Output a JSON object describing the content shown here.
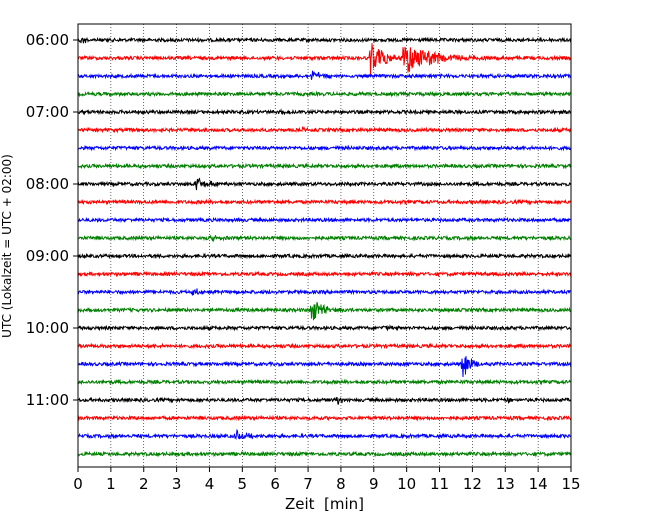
{
  "chart_data": {
    "type": "line",
    "title": "",
    "xlabel": "Zeit  [min]",
    "ylabel": "UTC (Lokalzeit = UTC + 02:00)",
    "xlim": [
      0,
      15
    ],
    "x_ticks": [
      "0",
      "1",
      "2",
      "3",
      "4",
      "5",
      "6",
      "7",
      "8",
      "9",
      "10",
      "11",
      "12",
      "13",
      "14",
      "15"
    ],
    "y_ticks": [
      "06:00",
      "07:00",
      "08:00",
      "09:00",
      "10:00",
      "11:00"
    ],
    "grid": {
      "x": "dotted",
      "y": "off"
    },
    "trace_count": 24,
    "trace_interval_min": 15,
    "color_cycle": [
      "#000000",
      "#ff0000",
      "#0000ff",
      "#008000"
    ],
    "events": [
      {
        "trace": 0,
        "x": 0.1,
        "amp": 0.25,
        "dur": 0.4
      },
      {
        "trace": 1,
        "x": 8.9,
        "amp": 1.0,
        "dur": 0.9
      },
      {
        "trace": 1,
        "x": 9.9,
        "amp": 0.95,
        "dur": 1.8
      },
      {
        "trace": 2,
        "x": 7.1,
        "amp": 0.28,
        "dur": 0.9
      },
      {
        "trace": 4,
        "x": 6.2,
        "amp": 0.15,
        "dur": 0.3
      },
      {
        "trace": 5,
        "x": 6.8,
        "amp": 0.22,
        "dur": 0.2
      },
      {
        "trace": 8,
        "x": 3.6,
        "amp": 0.4,
        "dur": 0.7
      },
      {
        "trace": 11,
        "x": 4.0,
        "amp": 0.2,
        "dur": 0.5
      },
      {
        "trace": 14,
        "x": 3.5,
        "amp": 0.22,
        "dur": 0.5
      },
      {
        "trace": 15,
        "x": 7.1,
        "amp": 0.75,
        "dur": 0.8
      },
      {
        "trace": 16,
        "x": 9.3,
        "amp": 0.2,
        "dur": 0.3
      },
      {
        "trace": 18,
        "x": 11.7,
        "amp": 0.9,
        "dur": 0.5
      },
      {
        "trace": 20,
        "x": 7.9,
        "amp": 0.22,
        "dur": 0.3
      },
      {
        "trace": 20,
        "x": 13.1,
        "amp": 0.22,
        "dur": 0.2
      },
      {
        "trace": 22,
        "x": 4.8,
        "amp": 0.35,
        "dur": 0.6
      }
    ]
  }
}
